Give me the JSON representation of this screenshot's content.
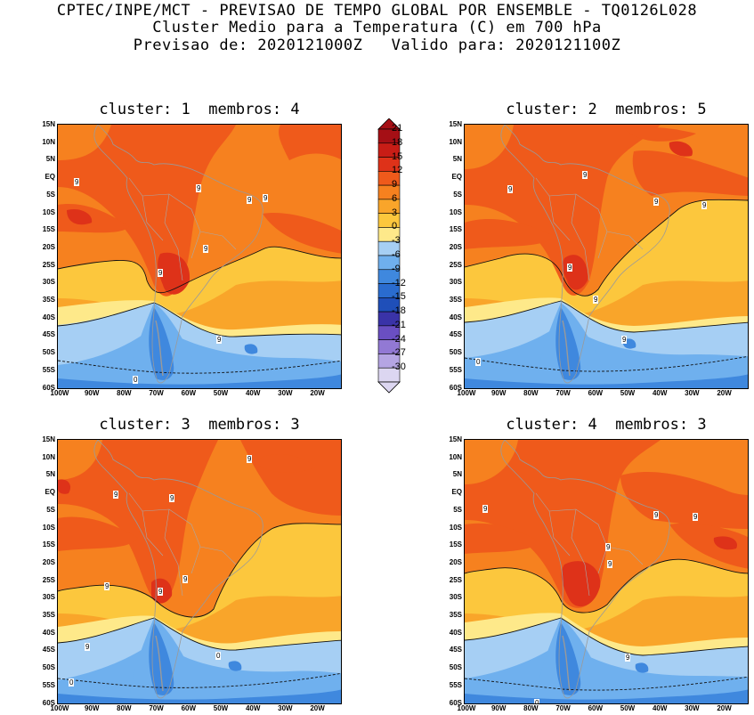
{
  "titles": {
    "line1": "CPTEC/INPE/MCT - PREVISAO DE TEMPO GLOBAL POR ENSEMBLE - TQ0126L028",
    "line2": "Cluster Medio para a Temperatura (C) em 700 hPa",
    "line3": "Previsao de: 2020121000Z   Valido para: 2020121100Z"
  },
  "lat_labels": [
    "15N",
    "10N",
    "5N",
    "EQ",
    "5S",
    "10S",
    "15S",
    "20S",
    "25S",
    "30S",
    "35S",
    "40S",
    "45S",
    "50S",
    "55S",
    "60S"
  ],
  "lon_labels": [
    "100W",
    "90W",
    "80W",
    "70W",
    "60W",
    "50W",
    "40W",
    "30W",
    "20W"
  ],
  "colorbar": {
    "ticks": [
      "21",
      "18",
      "15",
      "12",
      "9",
      "6",
      "3",
      "0",
      "-3",
      "-6",
      "-9",
      "-12",
      "-15",
      "-18",
      "-21",
      "-24",
      "-27",
      "-30"
    ],
    "colors": [
      "#a50f15",
      "#c81d16",
      "#de3219",
      "#ef5a1b",
      "#f6811f",
      "#f9a52a",
      "#fcc73d",
      "#fee98a",
      "#a6cff4",
      "#6fb0ee",
      "#3f88de",
      "#2a6ccf",
      "#1f4fb9",
      "#3a33a8",
      "#6a4fc2",
      "#9279d4",
      "#b5a5e3",
      "#dcd6f1"
    ]
  },
  "panels": [
    {
      "title": "cluster: 1  membros: 4",
      "labels": [
        {
          "t": "9"
        },
        {
          "t": "9"
        },
        {
          "t": "9"
        },
        {
          "t": "9"
        },
        {
          "t": "9"
        },
        {
          "t": "9"
        },
        {
          "t": "9"
        },
        {
          "t": "0"
        },
        {
          "t": "-9"
        }
      ]
    },
    {
      "title": "cluster: 2  membros: 5",
      "labels": [
        {
          "t": "9"
        },
        {
          "t": "9"
        },
        {
          "t": "9"
        },
        {
          "t": "9"
        },
        {
          "t": "9"
        },
        {
          "t": "9"
        },
        {
          "t": "9"
        },
        {
          "t": "0"
        },
        {
          "t": "-9"
        }
      ]
    },
    {
      "title": "cluster: 3  membros: 3",
      "labels": [
        {
          "t": "9"
        },
        {
          "t": "9"
        },
        {
          "t": "9"
        },
        {
          "t": "9"
        },
        {
          "t": "9"
        },
        {
          "t": "9"
        },
        {
          "t": "9"
        },
        {
          "t": "0"
        },
        {
          "t": "0"
        },
        {
          "t": "-9"
        }
      ]
    },
    {
      "title": "cluster: 4  membros: 3",
      "labels": [
        {
          "t": "9"
        },
        {
          "t": "9"
        },
        {
          "t": "9"
        },
        {
          "t": "9"
        },
        {
          "t": "9"
        },
        {
          "t": "9"
        },
        {
          "t": "0"
        },
        {
          "t": "-9"
        }
      ]
    }
  ]
}
